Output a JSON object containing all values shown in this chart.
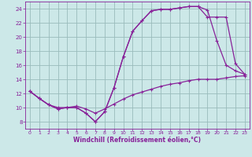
{
  "xlabel": "Windchill (Refroidissement éolien,°C)",
  "bg_color": "#cce8e8",
  "grid_color": "#99bbbb",
  "line_color": "#882299",
  "xlim": [
    -0.5,
    23.5
  ],
  "ylim": [
    7,
    25
  ],
  "xticks": [
    0,
    1,
    2,
    3,
    4,
    5,
    6,
    7,
    8,
    9,
    10,
    11,
    12,
    13,
    14,
    15,
    16,
    17,
    18,
    19,
    20,
    21,
    22,
    23
  ],
  "yticks": [
    8,
    10,
    12,
    14,
    16,
    18,
    20,
    22,
    24
  ],
  "line1_x": [
    0,
    1,
    2,
    3,
    4,
    5,
    6,
    7,
    8,
    9,
    10,
    11,
    12,
    13,
    14,
    15,
    16,
    17,
    18,
    19,
    20,
    21,
    22,
    23
  ],
  "line1_y": [
    12.3,
    11.3,
    10.4,
    9.8,
    10.0,
    10.0,
    9.2,
    8.0,
    9.4,
    12.8,
    17.2,
    20.8,
    22.3,
    23.7,
    23.9,
    23.9,
    24.1,
    24.3,
    24.3,
    23.8,
    19.5,
    16.0,
    15.2,
    14.7
  ],
  "line2_x": [
    0,
    1,
    2,
    3,
    4,
    5,
    6,
    7,
    8,
    9,
    10,
    11,
    12,
    13,
    14,
    15,
    16,
    17,
    18,
    19,
    20,
    21,
    22,
    23
  ],
  "line2_y": [
    12.3,
    11.3,
    10.4,
    9.8,
    10.0,
    10.0,
    9.2,
    8.0,
    9.4,
    12.8,
    17.2,
    20.8,
    22.3,
    23.7,
    23.9,
    23.9,
    24.1,
    24.3,
    24.3,
    22.8,
    22.8,
    22.8,
    16.2,
    14.7
  ],
  "line3_x": [
    0,
    1,
    2,
    3,
    4,
    5,
    6,
    7,
    8,
    9,
    10,
    11,
    12,
    13,
    14,
    15,
    16,
    17,
    18,
    19,
    20,
    21,
    22,
    23
  ],
  "line3_y": [
    12.3,
    11.3,
    10.4,
    10.0,
    10.0,
    10.2,
    9.8,
    9.2,
    9.8,
    10.5,
    11.2,
    11.8,
    12.2,
    12.6,
    13.0,
    13.3,
    13.5,
    13.8,
    14.0,
    14.0,
    14.0,
    14.2,
    14.4,
    14.5
  ]
}
